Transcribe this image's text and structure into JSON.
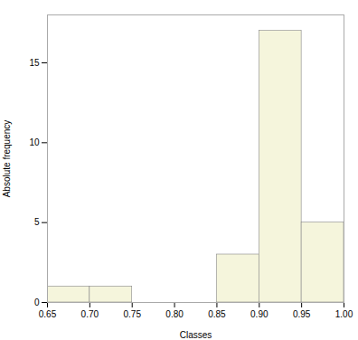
{
  "chart_data": {
    "type": "histogram",
    "bins": [
      0.65,
      0.7,
      0.75,
      0.8,
      0.85,
      0.9,
      0.95,
      1.0
    ],
    "values": [
      1,
      1,
      0,
      0,
      3,
      17,
      5
    ],
    "color": "#f5f5dc",
    "xlabel": "Classes",
    "ylabel": "Absolute frequency",
    "xlim": [
      0.65,
      1.0
    ],
    "ylim": [
      0,
      18
    ],
    "xticks": [
      0.65,
      {
        "value": 0.7,
        "label": "0.70"
      },
      0.75,
      {
        "value": 0.8,
        "label": "0.80"
      },
      0.85,
      {
        "value": 0.9,
        "label": "0.90"
      },
      0.95,
      {
        "value": 1.0,
        "label": "1.00"
      }
    ],
    "yticks": [
      0,
      5,
      10,
      15
    ],
    "grid": false
  }
}
